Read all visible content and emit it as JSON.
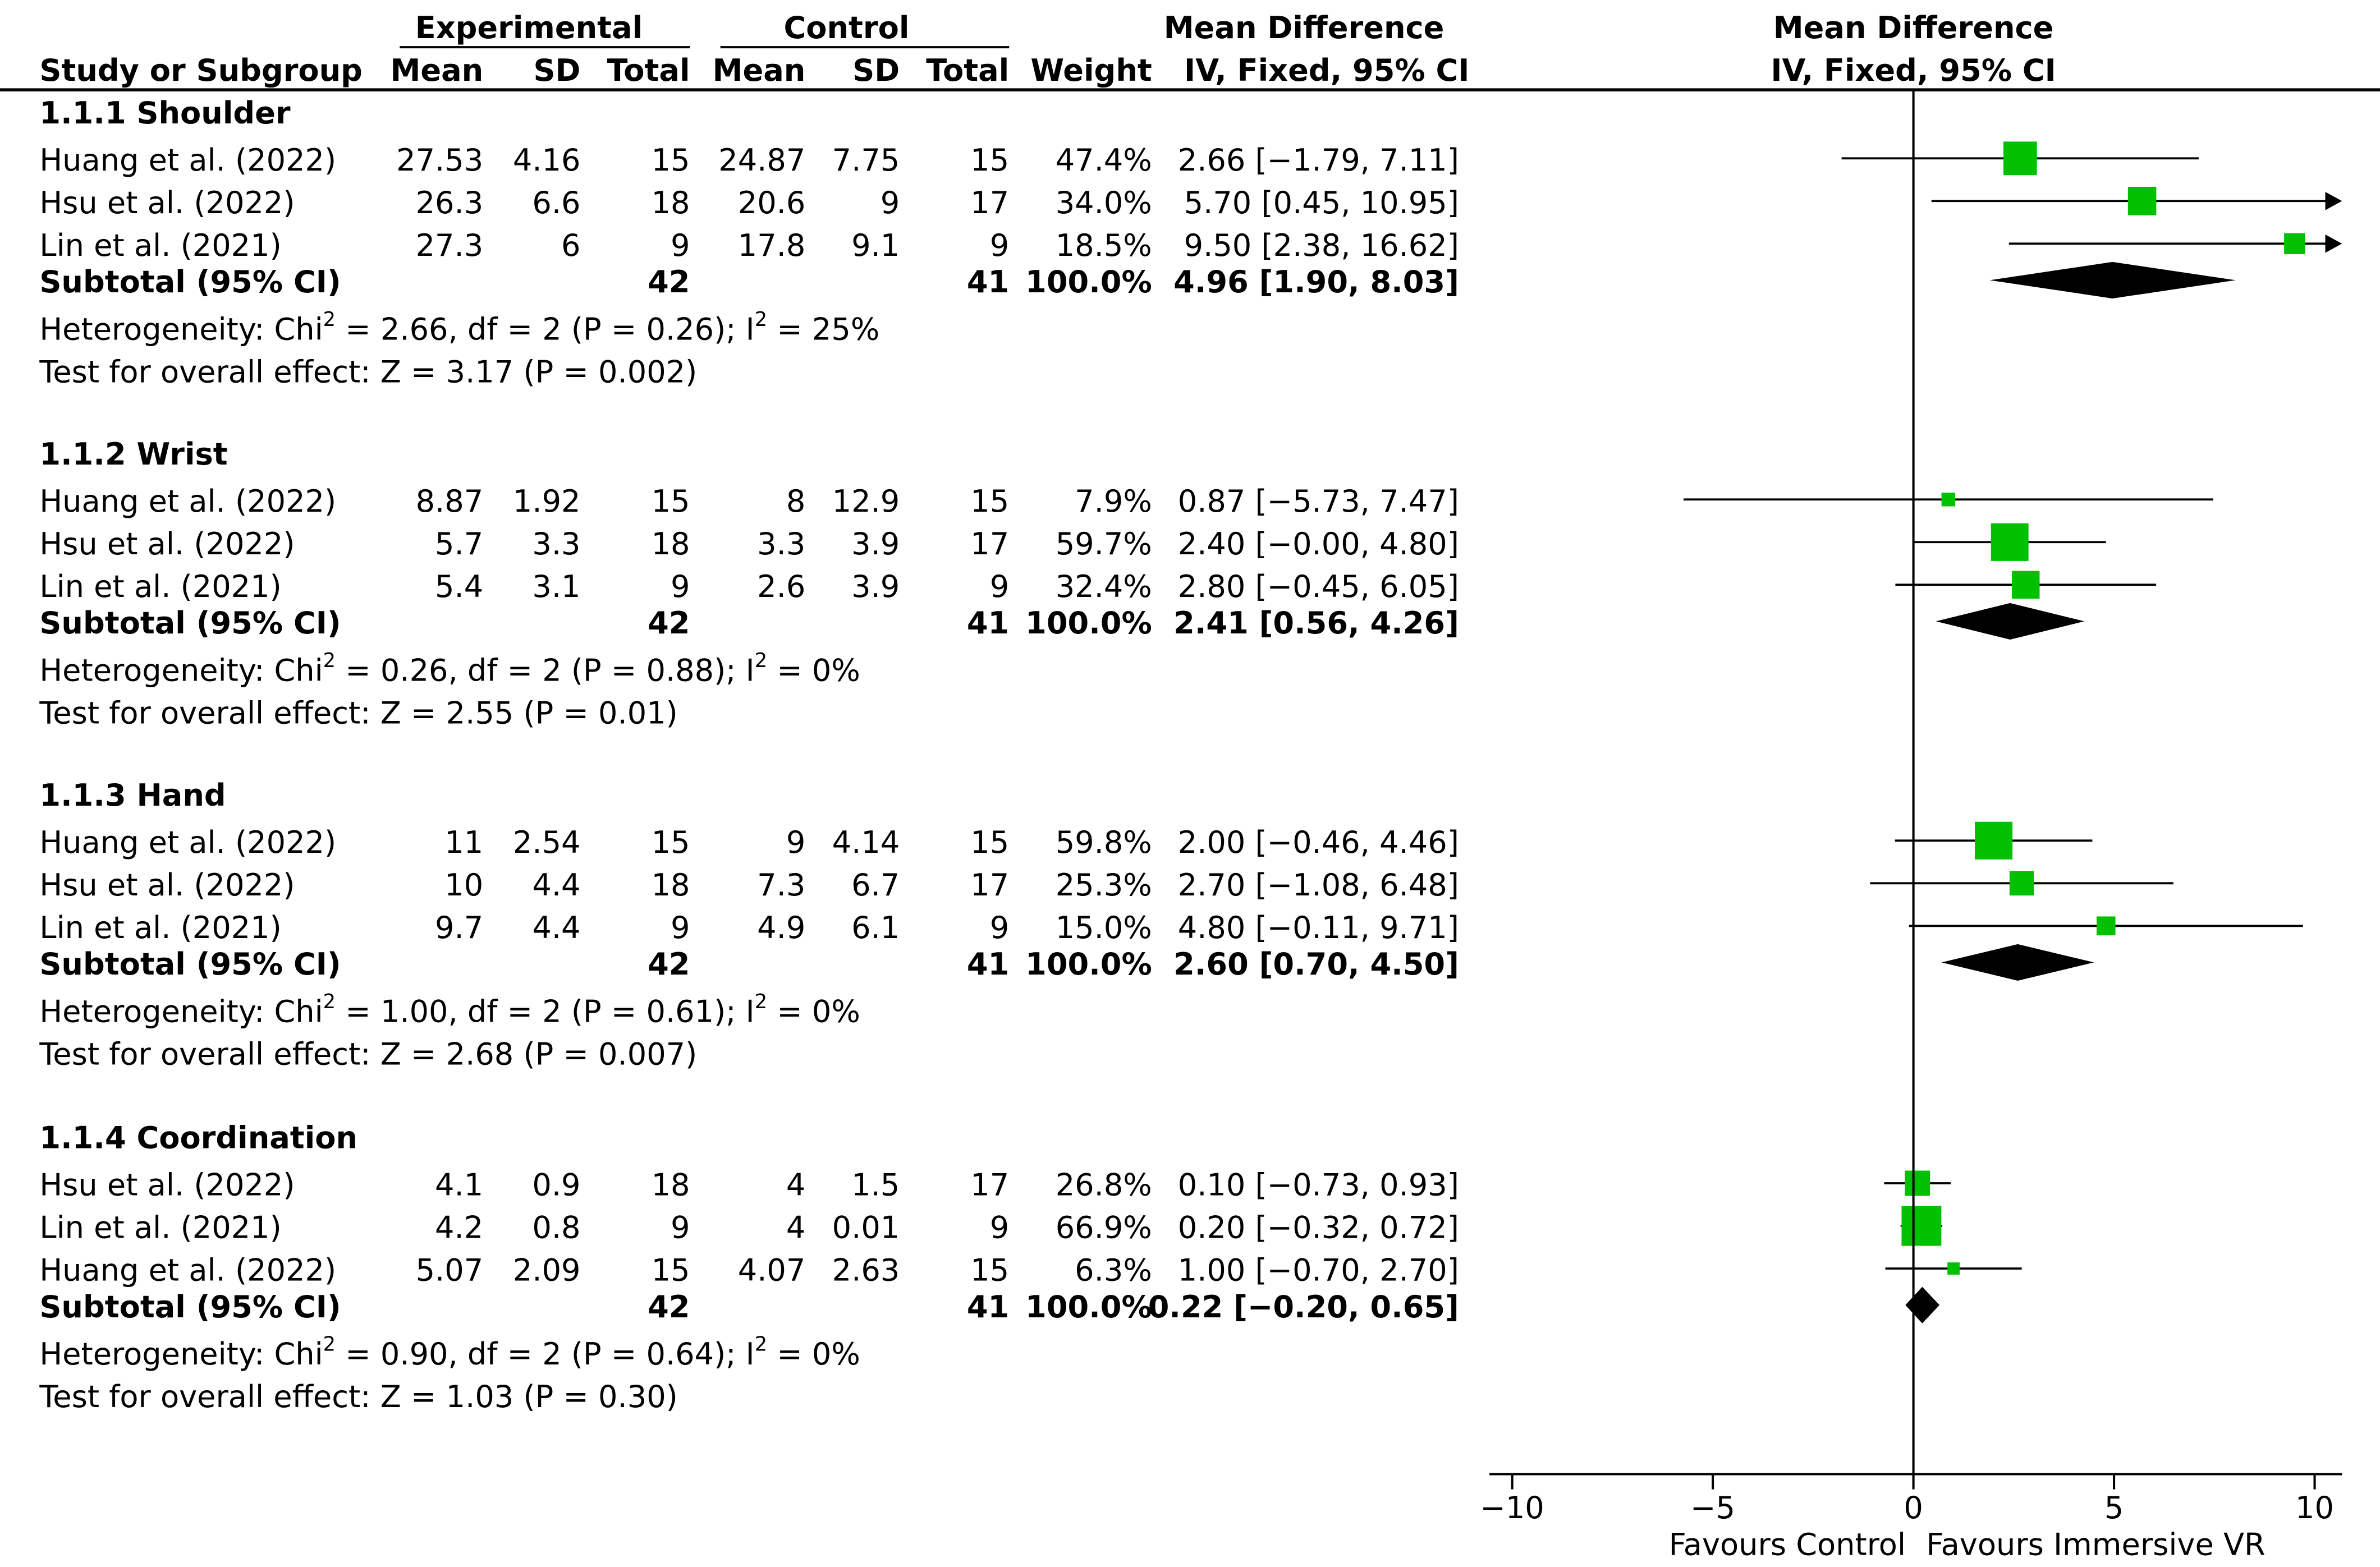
{
  "header": {
    "experimental": "Experimental",
    "control": "Control",
    "md_title": "Mean Difference",
    "md_sub": "IV, Fixed, 95% CI",
    "plot_title": "Mean Difference",
    "plot_sub": "IV, Fixed, 95% CI",
    "study": "Study or Subgroup",
    "mean": "Mean",
    "sd": "SD",
    "total": "Total",
    "weight": "Weight"
  },
  "groups": [
    {
      "title": "1.1.1 Shoulder",
      "studies": [
        {
          "name": "Huang et al. (2022)",
          "e_mean": "27.53",
          "e_sd": "4.16",
          "e_total": "15",
          "c_mean": "24.87",
          "c_sd": "7.75",
          "c_total": "15",
          "weight": "47.4%",
          "ci": "2.66 [−1.79, 7.11]"
        },
        {
          "name": "Hsu et al. (2022)",
          "e_mean": "26.3",
          "e_sd": "6.6",
          "e_total": "18",
          "c_mean": "20.6",
          "c_sd": "9",
          "c_total": "17",
          "weight": "34.0%",
          "ci": "5.70 [0.45, 10.95]"
        },
        {
          "name": "Lin et al. (2021)",
          "e_mean": "27.3",
          "e_sd": "6",
          "e_total": "9",
          "c_mean": "17.8",
          "c_sd": "9.1",
          "c_total": "9",
          "weight": "18.5%",
          "ci": "9.50 [2.38, 16.62]"
        }
      ],
      "subtotal": {
        "label": "Subtotal (95% CI)",
        "e_total": "42",
        "c_total": "41",
        "weight": "100.0%",
        "ci": "4.96 [1.90, 8.03]"
      },
      "het_pre": "Heterogeneity: Chi",
      "het_mid": " = 2.66, df = 2 (P = 0.26); I",
      "het_post": " = 25%",
      "test": "Test for overall effect: Z = 3.17 (P = 0.002)"
    },
    {
      "title": "1.1.2 Wrist",
      "studies": [
        {
          "name": "Huang et al. (2022)",
          "e_mean": "8.87",
          "e_sd": "1.92",
          "e_total": "15",
          "c_mean": "8",
          "c_sd": "12.9",
          "c_total": "15",
          "weight": "7.9%",
          "ci": "0.87 [−5.73, 7.47]"
        },
        {
          "name": "Hsu et al. (2022)",
          "e_mean": "5.7",
          "e_sd": "3.3",
          "e_total": "18",
          "c_mean": "3.3",
          "c_sd": "3.9",
          "c_total": "17",
          "weight": "59.7%",
          "ci": "2.40 [−0.00, 4.80]"
        },
        {
          "name": "Lin et al. (2021)",
          "e_mean": "5.4",
          "e_sd": "3.1",
          "e_total": "9",
          "c_mean": "2.6",
          "c_sd": "3.9",
          "c_total": "9",
          "weight": "32.4%",
          "ci": "2.80 [−0.45, 6.05]"
        }
      ],
      "subtotal": {
        "label": "Subtotal (95% CI)",
        "e_total": "42",
        "c_total": "41",
        "weight": "100.0%",
        "ci": "2.41 [0.56, 4.26]"
      },
      "het_pre": "Heterogeneity: Chi",
      "het_mid": " = 0.26, df = 2 (P = 0.88); I",
      "het_post": " = 0%",
      "test": "Test for overall effect: Z = 2.55 (P = 0.01)"
    },
    {
      "title": "1.1.3 Hand",
      "studies": [
        {
          "name": "Huang et al. (2022)",
          "e_mean": "11",
          "e_sd": "2.54",
          "e_total": "15",
          "c_mean": "9",
          "c_sd": "4.14",
          "c_total": "15",
          "weight": "59.8%",
          "ci": "2.00 [−0.46, 4.46]"
        },
        {
          "name": "Hsu et al. (2022)",
          "e_mean": "10",
          "e_sd": "4.4",
          "e_total": "18",
          "c_mean": "7.3",
          "c_sd": "6.7",
          "c_total": "17",
          "weight": "25.3%",
          "ci": "2.70 [−1.08, 6.48]"
        },
        {
          "name": "Lin et al. (2021)",
          "e_mean": "9.7",
          "e_sd": "4.4",
          "e_total": "9",
          "c_mean": "4.9",
          "c_sd": "6.1",
          "c_total": "9",
          "weight": "15.0%",
          "ci": "4.80 [−0.11, 9.71]"
        }
      ],
      "subtotal": {
        "label": "Subtotal (95% CI)",
        "e_total": "42",
        "c_total": "41",
        "weight": "100.0%",
        "ci": "2.60 [0.70, 4.50]"
      },
      "het_pre": "Heterogeneity: Chi",
      "het_mid": " = 1.00, df = 2 (P = 0.61); I",
      "het_post": " = 0%",
      "test": "Test for overall effect: Z = 2.68 (P = 0.007)"
    },
    {
      "title": "1.1.4 Coordination",
      "studies": [
        {
          "name": "Hsu et al. (2022)",
          "e_mean": "4.1",
          "e_sd": "0.9",
          "e_total": "18",
          "c_mean": "4",
          "c_sd": "1.5",
          "c_total": "17",
          "weight": "26.8%",
          "ci": "0.10 [−0.73, 0.93]"
        },
        {
          "name": "Lin et al. (2021)",
          "e_mean": "4.2",
          "e_sd": "0.8",
          "e_total": "9",
          "c_mean": "4",
          "c_sd": "0.01",
          "c_total": "9",
          "weight": "66.9%",
          "ci": "0.20 [−0.32, 0.72]"
        },
        {
          "name": "Huang et al. (2022)",
          "e_mean": "5.07",
          "e_sd": "2.09",
          "e_total": "15",
          "c_mean": "4.07",
          "c_sd": "2.63",
          "c_total": "15",
          "weight": "6.3%",
          "ci": "1.00 [−0.70, 2.70]"
        }
      ],
      "subtotal": {
        "label": "Subtotal (95% CI)",
        "e_total": "42",
        "c_total": "41",
        "weight": "100.0%",
        "ci": "0.22 [−0.20, 0.65]"
      },
      "het_pre": "Heterogeneity: Chi",
      "het_mid": " = 0.90, df = 2 (P = 0.64); I",
      "het_post": " = 0%",
      "test": "Test for overall effect: Z = 1.03 (P = 0.30)"
    }
  ],
  "superscript": "2",
  "axis": {
    "ticks": [
      "−10",
      "−5",
      "0",
      "5",
      "10"
    ],
    "favours_left": "Favours Control",
    "favours_right": "Favours Immersive VR"
  },
  "colors": {
    "study_marker": "#00c000",
    "subtotal_marker": "#000000"
  },
  "chart_data": {
    "type": "scatter",
    "title": "Mean Difference",
    "subtitle": "IV, Fixed, 95% CI",
    "xlabel": "",
    "ylabel": "",
    "xlim": [
      -10,
      10
    ],
    "x_ticks": [
      -10,
      -5,
      0,
      5,
      10
    ],
    "grid": false,
    "legend": "none",
    "reference_line": 0,
    "series": [
      {
        "name": "1.1.1 Shoulder",
        "studies": [
          {
            "label": "Huang et al. (2022)",
            "md": 2.66,
            "lo": -1.79,
            "hi": 7.11,
            "weight": 47.4
          },
          {
            "label": "Hsu et al. (2022)",
            "md": 5.7,
            "lo": 0.45,
            "hi": 10.95,
            "weight": 34.0
          },
          {
            "label": "Lin et al. (2021)",
            "md": 9.5,
            "lo": 2.38,
            "hi": 16.62,
            "weight": 18.5
          }
        ],
        "subtotal": {
          "md": 4.96,
          "lo": 1.9,
          "hi": 8.03
        }
      },
      {
        "name": "1.1.2 Wrist",
        "studies": [
          {
            "label": "Huang et al. (2022)",
            "md": 0.87,
            "lo": -5.73,
            "hi": 7.47,
            "weight": 7.9
          },
          {
            "label": "Hsu et al. (2022)",
            "md": 2.4,
            "lo": -0.0,
            "hi": 4.8,
            "weight": 59.7
          },
          {
            "label": "Lin et al. (2021)",
            "md": 2.8,
            "lo": -0.45,
            "hi": 6.05,
            "weight": 32.4
          }
        ],
        "subtotal": {
          "md": 2.41,
          "lo": 0.56,
          "hi": 4.26
        }
      },
      {
        "name": "1.1.3 Hand",
        "studies": [
          {
            "label": "Huang et al. (2022)",
            "md": 2.0,
            "lo": -0.46,
            "hi": 4.46,
            "weight": 59.8
          },
          {
            "label": "Hsu et al. (2022)",
            "md": 2.7,
            "lo": -1.08,
            "hi": 6.48,
            "weight": 25.3
          },
          {
            "label": "Lin et al. (2021)",
            "md": 4.8,
            "lo": -0.11,
            "hi": 9.71,
            "weight": 15.0
          }
        ],
        "subtotal": {
          "md": 2.6,
          "lo": 0.7,
          "hi": 4.5
        }
      },
      {
        "name": "1.1.4 Coordination",
        "studies": [
          {
            "label": "Hsu et al. (2022)",
            "md": 0.1,
            "lo": -0.73,
            "hi": 0.93,
            "weight": 26.8
          },
          {
            "label": "Lin et al. (2021)",
            "md": 0.2,
            "lo": -0.32,
            "hi": 0.72,
            "weight": 66.9
          },
          {
            "label": "Huang et al. (2022)",
            "md": 1.0,
            "lo": -0.7,
            "hi": 2.7,
            "weight": 6.3
          }
        ],
        "subtotal": {
          "md": 0.22,
          "lo": -0.2,
          "hi": 0.65
        }
      }
    ]
  }
}
